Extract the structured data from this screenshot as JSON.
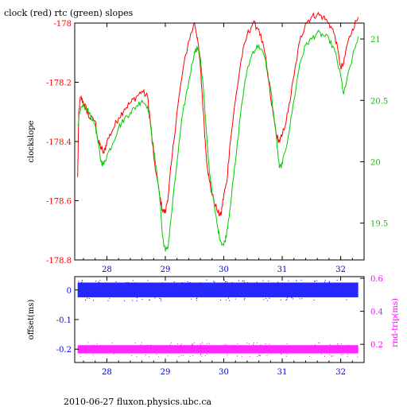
{
  "title": "clock (red) rtc (green) slopes",
  "footer": "2010-06-27 fluxon.physics.ubc.ca",
  "colors": {
    "clock": "#ff0000",
    "rtc": "#00cc00",
    "offset": "#0000ff",
    "rndtrip": "#ff00ff",
    "x_ticks": "#0000cc",
    "axis": "#000000"
  },
  "chart_data": [
    {
      "type": "line",
      "ylabel": "clockslope",
      "y2label": "",
      "xlim": [
        27.45,
        32.4
      ],
      "ylim": [
        -178.8,
        -178.0
      ],
      "y2lim": [
        19.2,
        21.13
      ],
      "x_ticks": [
        28,
        29,
        30,
        31,
        32
      ],
      "y_ticks": [
        -178,
        -178.2,
        -178.4,
        -178.6,
        -178.8
      ],
      "y_tick_labels": [
        "-178",
        "-178.2",
        "-178.4",
        "-178.6",
        "-178.8"
      ],
      "y2_ticks": [
        21,
        20.5,
        20,
        19.5
      ],
      "y2_tick_labels": [
        "21",
        "20.5",
        "20",
        "19.5"
      ],
      "grid": false,
      "series": [
        {
          "axis": "left",
          "color": "#ff0000",
          "x": [
            27.5,
            27.52,
            27.55,
            27.6,
            27.65,
            27.7,
            27.8,
            27.85,
            27.9,
            27.95,
            28.0,
            28.1,
            28.2,
            28.3,
            28.4,
            28.5,
            28.6,
            28.7,
            28.75,
            28.8,
            28.9,
            28.95,
            29.0,
            29.05,
            29.1,
            29.2,
            29.3,
            29.4,
            29.5,
            29.55,
            29.6,
            29.65,
            29.7,
            29.75,
            29.8,
            29.9,
            29.95,
            30.0,
            30.05,
            30.1,
            30.2,
            30.3,
            30.4,
            30.5,
            30.6,
            30.7,
            30.8,
            30.9,
            30.95,
            31.0,
            31.1,
            31.2,
            31.3,
            31.4,
            31.5,
            31.6,
            31.7,
            31.8,
            31.9,
            32.0,
            32.05,
            32.1,
            32.2,
            32.3
          ],
          "y": [
            -178.52,
            -178.3,
            -178.25,
            -178.27,
            -178.29,
            -178.32,
            -178.33,
            -178.4,
            -178.42,
            -178.44,
            -178.4,
            -178.36,
            -178.32,
            -178.29,
            -178.27,
            -178.25,
            -178.23,
            -178.25,
            -178.35,
            -178.45,
            -178.58,
            -178.63,
            -178.64,
            -178.58,
            -178.48,
            -178.3,
            -178.16,
            -178.06,
            -178.0,
            -178.05,
            -178.15,
            -178.3,
            -178.45,
            -178.53,
            -178.58,
            -178.64,
            -178.65,
            -178.58,
            -178.54,
            -178.42,
            -178.26,
            -178.12,
            -178.04,
            -178.0,
            -178.02,
            -178.1,
            -178.25,
            -178.38,
            -178.4,
            -178.38,
            -178.3,
            -178.18,
            -178.06,
            -178.0,
            -177.98,
            -177.97,
            -177.98,
            -178.0,
            -178.04,
            -178.15,
            -178.14,
            -178.08,
            -178.02,
            -177.98
          ]
        },
        {
          "axis": "right",
          "color": "#00cc00",
          "x": [
            27.5,
            27.55,
            27.6,
            27.65,
            27.7,
            27.8,
            27.85,
            27.9,
            27.95,
            28.0,
            28.1,
            28.2,
            28.3,
            28.4,
            28.5,
            28.6,
            28.7,
            28.75,
            28.8,
            28.9,
            28.95,
            29.0,
            29.05,
            29.1,
            29.2,
            29.3,
            29.4,
            29.5,
            29.55,
            29.6,
            29.65,
            29.7,
            29.75,
            29.8,
            29.9,
            29.95,
            30.0,
            30.05,
            30.1,
            30.2,
            30.3,
            30.4,
            30.5,
            30.6,
            30.7,
            30.8,
            30.9,
            30.95,
            31.0,
            31.1,
            31.2,
            31.3,
            31.4,
            31.5,
            31.6,
            31.7,
            31.8,
            31.9,
            32.0,
            32.05,
            32.1,
            32.2,
            32.3
          ],
          "y": [
            20.3,
            20.42,
            20.45,
            20.43,
            20.4,
            20.3,
            20.15,
            20.0,
            19.98,
            20.05,
            20.15,
            20.28,
            20.35,
            20.4,
            20.45,
            20.5,
            20.45,
            20.3,
            20.1,
            19.75,
            19.4,
            19.27,
            19.32,
            19.55,
            20.0,
            20.4,
            20.65,
            20.9,
            20.93,
            20.85,
            20.6,
            20.25,
            19.95,
            19.75,
            19.45,
            19.35,
            19.32,
            19.42,
            19.6,
            20.0,
            20.45,
            20.75,
            20.9,
            20.95,
            20.85,
            20.6,
            20.2,
            19.95,
            19.98,
            20.2,
            20.5,
            20.8,
            20.95,
            21.0,
            21.05,
            21.03,
            21.0,
            20.9,
            20.7,
            20.55,
            20.65,
            20.85,
            21.02
          ]
        }
      ]
    },
    {
      "type": "scatter",
      "ylabel": "offset(ms)",
      "y2label": "rnd-trip(ms)",
      "xlim": [
        27.45,
        32.4
      ],
      "ylim": [
        -0.245,
        0.045
      ],
      "y2lim": [
        0.09,
        0.61
      ],
      "x_ticks": [
        28,
        29,
        30,
        31,
        32
      ],
      "x_tick_labels": [
        "28",
        "29",
        "30",
        "31",
        "32"
      ],
      "y_ticks": [
        0,
        -0.1,
        -0.2
      ],
      "y_tick_labels": [
        "0",
        "-0.1",
        "-0.2"
      ],
      "y2_ticks": [
        0.6,
        0.4,
        0.2
      ],
      "y2_tick_labels": [
        "0.6",
        "0.4",
        "0.2"
      ],
      "grid": false,
      "series": [
        {
          "axis": "left",
          "color": "#0000ff",
          "x_range": [
            27.5,
            32.3
          ],
          "center": 0.0,
          "band": [
            -0.025,
            0.025
          ]
        },
        {
          "axis": "right",
          "color": "#ff00ff",
          "x_range": [
            27.5,
            32.3
          ],
          "center": 0.17,
          "band": [
            0.145,
            0.195
          ]
        }
      ]
    }
  ]
}
